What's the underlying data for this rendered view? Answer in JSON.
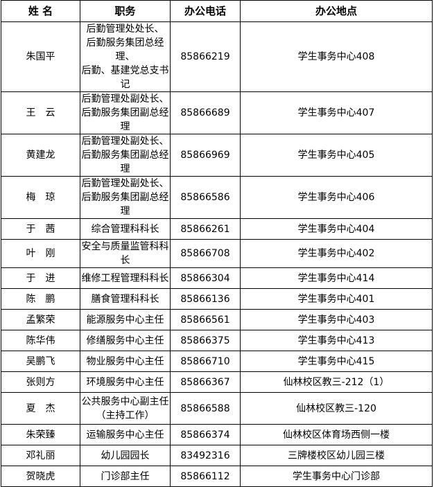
{
  "headers": [
    "姓 名",
    "职务",
    "办公电话",
    "办公地点"
  ],
  "rows": [
    {
      "name": "朱国平",
      "title": [
        "后勤管理处处长、",
        "后勤服务集团总经理、",
        "后勤、基建党总支书记"
      ],
      "phone": "85866219",
      "location": "学生事务中心408"
    },
    {
      "name": "王　云",
      "title": [
        "后勤管理处副处长、",
        "后勤服务集团副总经理"
      ],
      "phone": "85866689",
      "location": "学生事务中心407"
    },
    {
      "name": "黄建龙",
      "title": [
        "后勤管理处副处长、",
        "后勤服务集团副总经理"
      ],
      "phone": "85866969",
      "location": "学生事务中心405"
    },
    {
      "name": "梅　琼",
      "title": [
        "后勤管理处副处长、",
        "后勤服务集团副总经理"
      ],
      "phone": "85866586",
      "location": "学生事务中心406"
    },
    {
      "name": "于　茜",
      "title": [
        "综合管理科科长"
      ],
      "phone": "85866261",
      "location": "学生事务中心404"
    },
    {
      "name": "叶　刚",
      "title": [
        "安全与质量监管科科长"
      ],
      "phone": "85866708",
      "location": "学生事务中心402"
    },
    {
      "name": "于　进",
      "title": [
        "维修工程管理科科长"
      ],
      "phone": "85866304",
      "location": "学生事务中心414"
    },
    {
      "name": "陈　鹏",
      "title": [
        "膳食管理科科长"
      ],
      "phone": "85866136",
      "location": "学生事务中心401"
    },
    {
      "name": "孟繁荣",
      "title": [
        "能源服务中心主任"
      ],
      "phone": "85866561",
      "location": "学生事务中心403"
    },
    {
      "name": "陈华伟",
      "title": [
        "修缮服务中心主任"
      ],
      "phone": "85866375",
      "location": "学生事务中心413"
    },
    {
      "name": "吴鹏飞",
      "title": [
        "物业服务中心主任"
      ],
      "phone": "85866710",
      "location": "学生事务中心415"
    },
    {
      "name": "张则方",
      "title": [
        "环境服务中心主任"
      ],
      "phone": "85866367",
      "location": "仙林校区教三-212（1）"
    },
    {
      "name": "夏　杰",
      "title": [
        "公共服务中心副主任",
        "（主持工作）"
      ],
      "phone": "85866588",
      "location": "仙林校区教三-120"
    },
    {
      "name": "朱荣臻",
      "title": [
        "运输服务中心主任"
      ],
      "phone": "85866374",
      "location": "仙林校区体育场西侧一楼"
    },
    {
      "name": "邓礼丽",
      "title": [
        "幼儿园园长"
      ],
      "phone": "83492316",
      "location": "三牌楼校区幼儿园三楼"
    },
    {
      "name": "贺晓虎",
      "title": [
        "门诊部主任"
      ],
      "phone": "85866112",
      "location": "学生事务中心门诊部"
    }
  ]
}
